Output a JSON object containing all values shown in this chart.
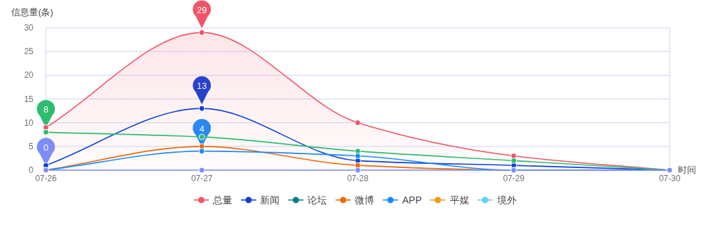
{
  "chart_data": {
    "type": "area",
    "ylabel": "信息量(条)",
    "xlabel": "时间",
    "categories": [
      "07-26",
      "07-27",
      "07-28",
      "07-29",
      "07-30"
    ],
    "ylim": [
      0,
      30
    ],
    "yticks": [
      0,
      5,
      10,
      15,
      20,
      25,
      30
    ],
    "grid": "y",
    "legend": "bottom",
    "marker": "circle",
    "series": [
      {
        "name": "总量",
        "color": "#ee5566",
        "values": [
          9,
          29,
          10,
          3,
          0
        ]
      },
      {
        "name": "新闻",
        "type": "line",
        "color": "#1040d8",
        "values": [
          1,
          13,
          2,
          1,
          0
        ]
      },
      {
        "name": "论坛",
        "type": "line",
        "color": "#0b7f86",
        "values": [
          null,
          null,
          null,
          null,
          null
        ]
      },
      {
        "name": "微博",
        "type": "line",
        "color": "#ee6a0a",
        "values": [
          0,
          5,
          1,
          0,
          0
        ]
      },
      {
        "type": "line",
        "color": "#2ebd6e",
        "values": [
          8,
          7,
          4,
          2,
          0
        ]
      },
      {
        "name": "APP",
        "type": "line",
        "color": "#1a8cff",
        "values": [
          0,
          4,
          3,
          0,
          0
        ]
      },
      {
        "name": "平媒",
        "type": "line",
        "color": "#f29a10",
        "values": [
          null,
          null,
          null,
          null,
          null
        ]
      },
      {
        "name": "境外",
        "type": "line",
        "color": "#5bd0f5",
        "values": [
          null,
          null,
          null,
          null,
          null
        ]
      },
      {
        "type": "line",
        "color": "#b08ae6",
        "values": [
          null,
          null,
          null,
          null,
          null
        ]
      },
      {
        "type": "line",
        "color": "#7b8ffa",
        "values": [
          0,
          0,
          0,
          0,
          0
        ]
      }
    ],
    "annotations": [
      {
        "text": "29",
        "x": "07-27",
        "y": 29
      },
      {
        "text": "13",
        "x": "07-27",
        "y": 13
      },
      {
        "text": "8",
        "x": "07-26",
        "y": 8
      },
      {
        "text": "4",
        "x": "07-27",
        "y": 4
      },
      {
        "text": "0",
        "x": "07-26",
        "y": 0
      }
    ]
  }
}
